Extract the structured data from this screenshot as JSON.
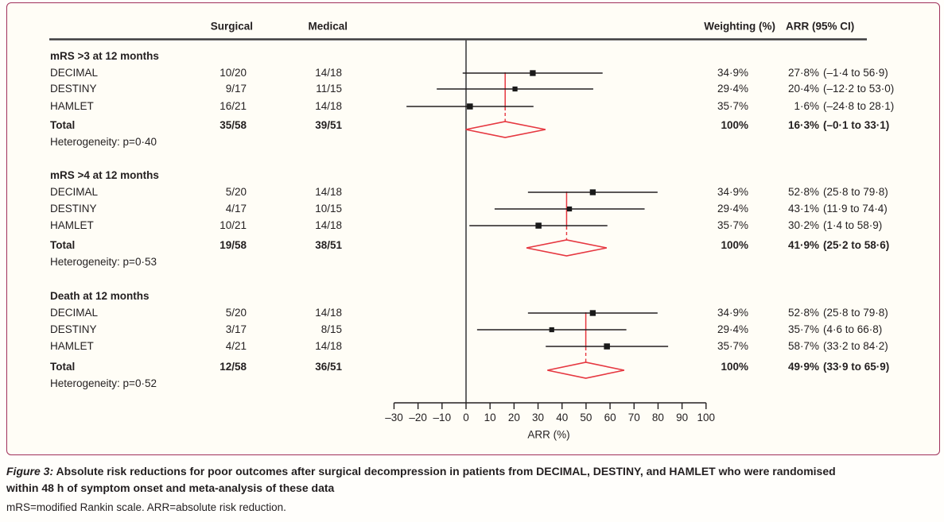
{
  "colors": {
    "pooled_red": "#e63740",
    "frame_pink": "#a0305a",
    "ink": "#231f20",
    "zero_line_gray": "#4b4b4d"
  },
  "caption": {
    "figure_label": "Figure 3:",
    "line1": "Absolute risk reductions for poor outcomes after surgical decompression in patients from DECIMAL, DESTINY, and HAMLET who were randomised",
    "line2": "within 48 h of symptom onset and meta-analysis of these data",
    "footnote": "mRS=modified Rankin scale. ARR=absolute risk reduction."
  },
  "chart_data": {
    "type": "forest",
    "xlabel": "ARR (%)",
    "xlim": [
      -30,
      100
    ],
    "x_ticks": [
      -30,
      -20,
      -10,
      0,
      10,
      20,
      30,
      40,
      50,
      60,
      70,
      80,
      90,
      100
    ],
    "x_tick_labels": [
      "–30",
      "–20",
      "–10",
      "0",
      "10",
      "20",
      "30",
      "40",
      "50",
      "60",
      "70",
      "80",
      "90",
      "100"
    ],
    "reference_line_x": 0,
    "columns": {
      "surgical": "Surgical",
      "medical": "Medical",
      "weighting": "Weighting (%)",
      "arr": "ARR (95% CI)"
    },
    "groups": [
      {
        "heading": "mRS >3 at 12 months",
        "heterogeneity": "Heterogeneity: p=0·40",
        "studies": [
          {
            "name": "DECIMAL",
            "surgical": "10/20",
            "medical": "14/18",
            "weight": "34·9%",
            "arr": 27.8,
            "ci": [
              -1.4,
              56.9
            ],
            "arr_value_label": "27·8%",
            "ci_label": "(–1·4 to 56·9)"
          },
          {
            "name": "DESTINY",
            "surgical": "9/17",
            "medical": "11/15",
            "weight": "29·4%",
            "arr": 20.4,
            "ci": [
              -12.2,
              53.0
            ],
            "arr_value_label": "20·4%",
            "ci_label": "(–12·2 to 53·0)"
          },
          {
            "name": "HAMLET",
            "surgical": "16/21",
            "medical": "14/18",
            "weight": "35·7%",
            "arr": 1.6,
            "ci": [
              -24.8,
              28.1
            ],
            "arr_value_label": "1·6%",
            "ci_label": "(–24·8 to 28·1)"
          }
        ],
        "total": {
          "name": "Total",
          "surgical": "35/58",
          "medical": "39/51",
          "weight": "100%",
          "arr": 16.3,
          "ci": [
            -0.1,
            33.1
          ],
          "arr_value_label": "16·3%",
          "ci_label": "(–0·1 to 33·1)"
        }
      },
      {
        "heading": "mRS >4 at 12 months",
        "heterogeneity": "Heterogeneity: p=0·53",
        "studies": [
          {
            "name": "DECIMAL",
            "surgical": "5/20",
            "medical": "14/18",
            "weight": "34·9%",
            "arr": 52.8,
            "ci": [
              25.8,
              79.8
            ],
            "arr_value_label": "52·8%",
            "ci_label": "(25·8 to 79·8)"
          },
          {
            "name": "DESTINY",
            "surgical": "4/17",
            "medical": "10/15",
            "weight": "29·4%",
            "arr": 43.1,
            "ci": [
              11.9,
              74.4
            ],
            "arr_value_label": "43·1%",
            "ci_label": "(11·9 to 74·4)"
          },
          {
            "name": "HAMLET",
            "surgical": "10/21",
            "medical": "14/18",
            "weight": "35·7%",
            "arr": 30.2,
            "ci": [
              1.4,
              58.9
            ],
            "arr_value_label": "30·2%",
            "ci_label": "(1·4 to 58·9)"
          }
        ],
        "total": {
          "name": "Total",
          "surgical": "19/58",
          "medical": "38/51",
          "weight": "100%",
          "arr": 41.9,
          "ci": [
            25.2,
            58.6
          ],
          "arr_value_label": "41·9%",
          "ci_label": "(25·2 to 58·6)"
        }
      },
      {
        "heading": "Death at 12 months",
        "heterogeneity": "Heterogeneity: p=0·52",
        "studies": [
          {
            "name": "DECIMAL",
            "surgical": "5/20",
            "medical": "14/18",
            "weight": "34·9%",
            "arr": 52.8,
            "ci": [
              25.8,
              79.8
            ],
            "arr_value_label": "52·8%",
            "ci_label": "(25·8 to 79·8)"
          },
          {
            "name": "DESTINY",
            "surgical": "3/17",
            "medical": "8/15",
            "weight": "29·4%",
            "arr": 35.7,
            "ci": [
              4.6,
              66.8
            ],
            "arr_value_label": "35·7%",
            "ci_label": "(4·6 to 66·8)"
          },
          {
            "name": "HAMLET",
            "surgical": "4/21",
            "medical": "14/18",
            "weight": "35·7%",
            "arr": 58.7,
            "ci": [
              33.2,
              84.2
            ],
            "arr_value_label": "58·7%",
            "ci_label": "(33·2 to 84·2)"
          }
        ],
        "total": {
          "name": "Total",
          "surgical": "12/58",
          "medical": "36/51",
          "weight": "100%",
          "arr": 49.9,
          "ci": [
            33.9,
            65.9
          ],
          "arr_value_label": "49·9%",
          "ci_label": "(33·9 to 65·9)"
        }
      }
    ]
  }
}
